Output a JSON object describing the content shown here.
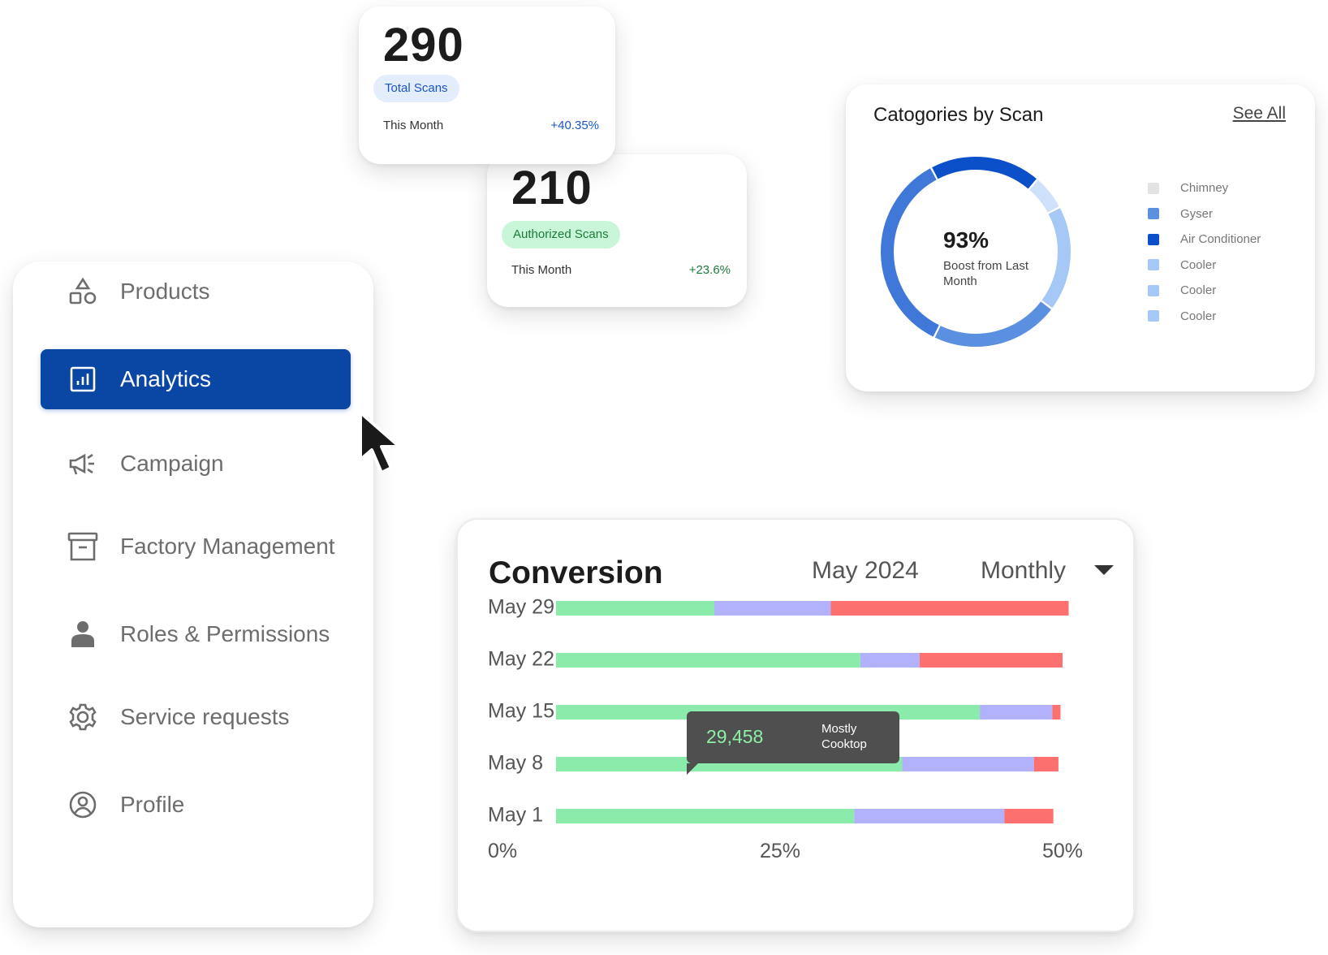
{
  "sidebar": {
    "items": [
      {
        "label": "Products",
        "icon": "shapes-icon",
        "active": false
      },
      {
        "label": "Analytics",
        "icon": "bar-chart-icon",
        "active": true
      },
      {
        "label": "Campaign",
        "icon": "megaphone-icon",
        "active": false
      },
      {
        "label": "Factory Management",
        "icon": "archive-box-icon",
        "active": false
      },
      {
        "label": "Roles & Permissions",
        "icon": "person-icon",
        "active": false
      },
      {
        "label": "Service requests",
        "icon": "gear-icon",
        "active": false
      },
      {
        "label": "Profile",
        "icon": "user-circle-icon",
        "active": false
      }
    ]
  },
  "stats": {
    "total": {
      "value": "290",
      "badge": "Total Scans",
      "period": "This Month",
      "delta": "+40.35%"
    },
    "authorized": {
      "value": "210",
      "badge": "Authorized Scans",
      "period": "This Month",
      "delta": "+23.6%"
    }
  },
  "categories": {
    "title": "Catogories by Scan",
    "see_all": "See All",
    "center_value": "93%",
    "center_label": "Boost from Last Month",
    "legend": [
      {
        "label": "Chimney",
        "color": "#e2e2e2"
      },
      {
        "label": "Gyser",
        "color": "#5b8fe0"
      },
      {
        "label": "Air Conditioner",
        "color": "#0b4fc9"
      },
      {
        "label": "Cooler",
        "color": "#a6c8f6"
      },
      {
        "label": "Cooler",
        "color": "#a6c8f6"
      },
      {
        "label": "Cooler",
        "color": "#a6c8f6"
      }
    ]
  },
  "conversion": {
    "title": "Conversion",
    "month": "May 2024",
    "period": "Monthly",
    "tooltip": {
      "value": "29,458",
      "label": "Mostly Cooktop"
    }
  },
  "chart_data": [
    {
      "type": "pie",
      "title": "Catogories by Scan",
      "slices": [
        {
          "label": "Air Conditioner",
          "value": 0.19,
          "color": "#0b4fc9"
        },
        {
          "label": "Cooler",
          "value": 0.06,
          "color": "#cfe0fb"
        },
        {
          "label": "Cooler",
          "value": 0.18,
          "color": "#a6c8f6"
        },
        {
          "label": "Gyser",
          "value": 0.22,
          "color": "#5b8fe0"
        },
        {
          "label": "Gyser",
          "value": 0.35,
          "color": "#3f78d8"
        }
      ]
    },
    {
      "type": "bar",
      "orientation": "horizontal",
      "stacked": true,
      "categories": [
        "May 29",
        "May 22",
        "May 15",
        "May 8",
        "May 1"
      ],
      "x_ticks": [
        "0%",
        "25%",
        "50%"
      ],
      "xlim": [
        0,
        50
      ],
      "series": [
        {
          "values": [
            15.5,
            29.8,
            41.5,
            33.9,
            29.2
          ],
          "color": "#8aebaa"
        },
        {
          "values": [
            11.4,
            5.8,
            7.1,
            12.9,
            14.7
          ],
          "color": "#b1b2fb"
        },
        {
          "values": [
            23.3,
            14.0,
            0.8,
            2.4,
            4.8
          ],
          "color": "#fc7070"
        }
      ]
    }
  ]
}
